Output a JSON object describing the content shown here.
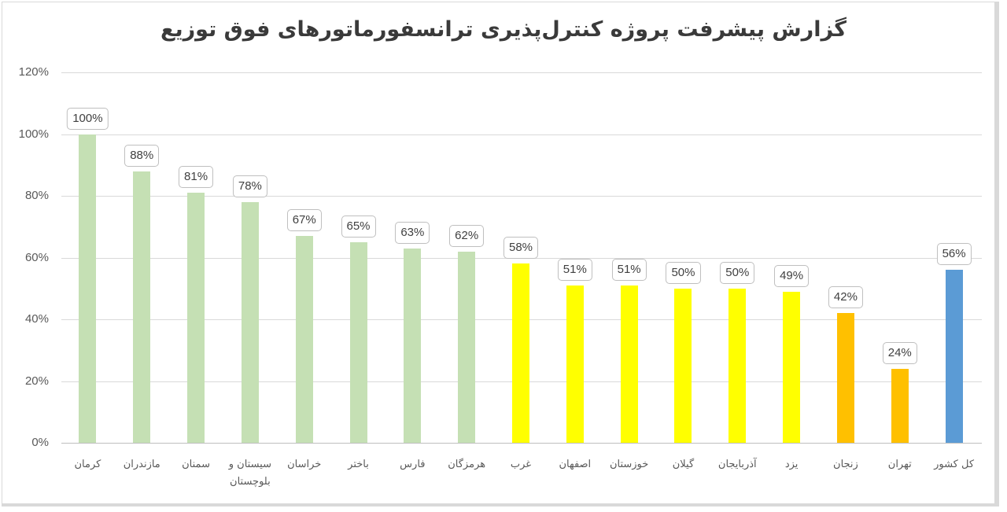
{
  "chart_data": {
    "type": "bar",
    "title": "گزارش پیشرفت پروژه کنترل‌پذیری ترانسفورماتورهای فوق توزیع",
    "xlabel": "",
    "ylabel": "",
    "ylim": [
      0,
      120
    ],
    "yticks": [
      "0%",
      "20%",
      "40%",
      "60%",
      "80%",
      "100%",
      "120%"
    ],
    "grid": true,
    "legend": "none",
    "categories": [
      "کرمان",
      "مازندران",
      "سمنان",
      "سیستان و بلوچستان",
      "خراسان",
      "باختر",
      "فارس",
      "هرمزگان",
      "غرب",
      "اصفهان",
      "خوزستان",
      "گیلان",
      "آذربایجان",
      "یزد",
      "زنجان",
      "تهران",
      "کل کشور"
    ],
    "values": [
      100,
      88,
      81,
      78,
      67,
      65,
      63,
      62,
      58,
      51,
      51,
      50,
      50,
      49,
      42,
      24,
      56
    ],
    "data_labels": [
      "100%",
      "88%",
      "81%",
      "78%",
      "67%",
      "65%",
      "63%",
      "62%",
      "58%",
      "51%",
      "51%",
      "50%",
      "50%",
      "49%",
      "42%",
      "24%",
      "56%"
    ],
    "bar_colors": [
      "#c5e0b4",
      "#c5e0b4",
      "#c5e0b4",
      "#c5e0b4",
      "#c5e0b4",
      "#c5e0b4",
      "#c5e0b4",
      "#c5e0b4",
      "#ffff00",
      "#ffff00",
      "#ffff00",
      "#ffff00",
      "#ffff00",
      "#ffff00",
      "#ffc000",
      "#ffc000",
      "#5b9bd5"
    ]
  },
  "colors": {
    "high": "#c5e0b4",
    "medium": "#ffff00",
    "low": "#ffc000",
    "total": "#5b9bd5"
  }
}
